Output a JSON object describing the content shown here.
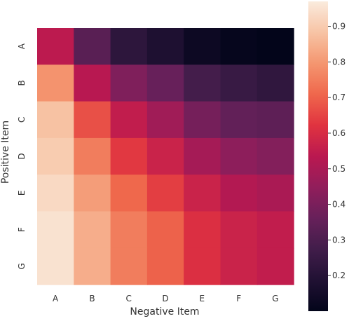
{
  "chart_data": {
    "type": "heatmap",
    "x_categories": [
      "A",
      "B",
      "C",
      "D",
      "E",
      "F",
      "G"
    ],
    "y_categories": [
      "A",
      "B",
      "C",
      "D",
      "E",
      "F",
      "G"
    ],
    "xlabel": "Negative Item",
    "ylabel": "Positive Item",
    "values": [
      [
        0.54,
        0.33,
        0.22,
        0.18,
        0.13,
        0.11,
        0.1
      ],
      [
        0.79,
        0.53,
        0.41,
        0.36,
        0.28,
        0.25,
        0.23
      ],
      [
        0.88,
        0.67,
        0.55,
        0.48,
        0.39,
        0.35,
        0.34
      ],
      [
        0.9,
        0.75,
        0.63,
        0.57,
        0.49,
        0.44,
        0.42
      ],
      [
        0.93,
        0.81,
        0.71,
        0.64,
        0.57,
        0.52,
        0.5
      ],
      [
        0.95,
        0.84,
        0.75,
        0.7,
        0.61,
        0.57,
        0.55
      ],
      [
        0.95,
        0.84,
        0.75,
        0.7,
        0.61,
        0.57,
        0.55
      ]
    ],
    "colorbar": {
      "min": 0.1,
      "max": 0.97,
      "ticks": [
        0.2,
        0.3,
        0.4,
        0.5,
        0.6,
        0.7,
        0.8,
        0.9
      ],
      "tick_labels": [
        "0.2",
        "0.3",
        "0.4",
        "0.5",
        "0.6",
        "0.7",
        "0.8",
        "0.9"
      ],
      "colormap": "rocket"
    },
    "grid": false
  }
}
